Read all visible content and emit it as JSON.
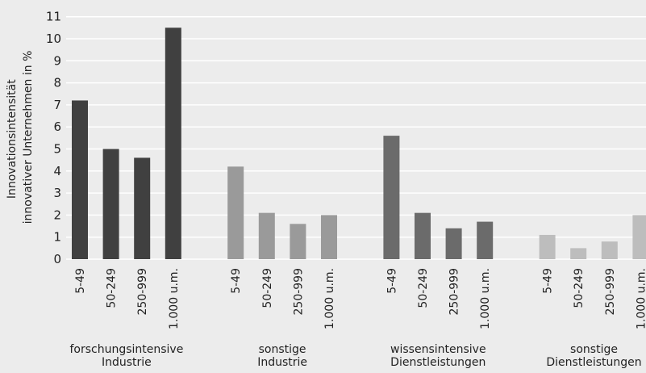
{
  "chart_data": {
    "type": "bar",
    "ylabel": [
      "Innovationsintensität",
      "innovativer Unternehmen in %"
    ],
    "ylim": [
      0,
      11
    ],
    "yticks": [
      0,
      1,
      2,
      3,
      4,
      5,
      6,
      7,
      8,
      9,
      10,
      11
    ],
    "grid": true,
    "groups": [
      {
        "label": [
          "forschungsintensive",
          "Industrie"
        ],
        "color": "#404040",
        "categories": [
          "5-49",
          "50-249",
          "250-999",
          "1.000 u.m."
        ],
        "values": [
          7.2,
          5.0,
          4.6,
          10.5
        ]
      },
      {
        "label": [
          "sonstige",
          "Industrie"
        ],
        "color": "#9a9a9a",
        "categories": [
          "5-49",
          "50-249",
          "250-999",
          "1.000 u.m."
        ],
        "values": [
          4.2,
          2.1,
          1.6,
          2.0
        ]
      },
      {
        "label": [
          "wissensintensive",
          "Dienstleistungen"
        ],
        "color": "#6b6b6b",
        "categories": [
          "5-49",
          "50-249",
          "250-999",
          "1.000 u.m."
        ],
        "values": [
          5.6,
          2.1,
          1.4,
          1.7
        ]
      },
      {
        "label": [
          "sonstige",
          "Dienstleistungen"
        ],
        "color": "#bdbdbd",
        "categories": [
          "5-49",
          "50-249",
          "250-999",
          "1.000 u.m."
        ],
        "values": [
          1.1,
          0.5,
          0.8,
          2.0
        ]
      }
    ]
  }
}
